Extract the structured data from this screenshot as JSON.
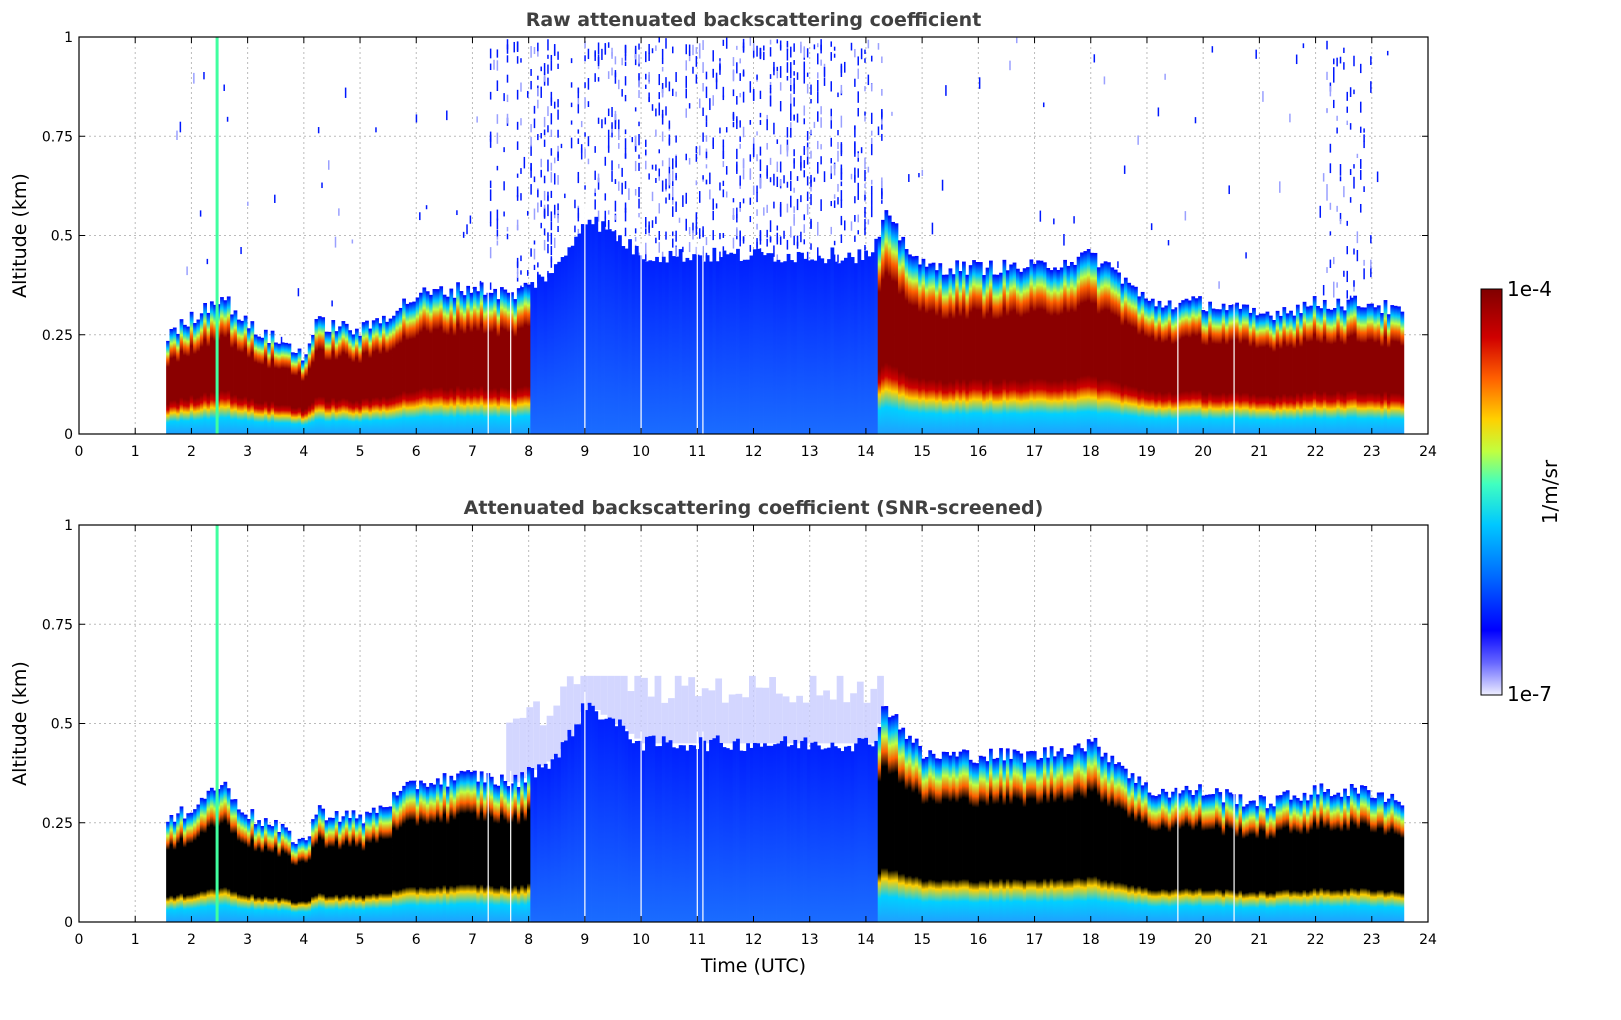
{
  "chart_data": [
    {
      "type": "heatmap",
      "title": "Raw attenuated backscattering coefficient",
      "xlabel": "",
      "ylabel": "Altitude (km)",
      "xlim": [
        0,
        24
      ],
      "ylim": [
        0,
        1
      ],
      "xticks": [
        "0",
        "1",
        "2",
        "3",
        "4",
        "5",
        "6",
        "7",
        "8",
        "9",
        "10",
        "11",
        "12",
        "13",
        "14",
        "15",
        "16",
        "17",
        "18",
        "19",
        "20",
        "21",
        "22",
        "23",
        "24"
      ],
      "yticks": [
        "0",
        "0.25",
        "0.5",
        "0.75",
        "1"
      ],
      "grid": true,
      "data_time_range_utc": [
        1.55,
        23.55
      ],
      "boundary_layer_top_km": {
        "time": [
          1.6,
          2.5,
          3.0,
          4.0,
          4.2,
          5.0,
          6.0,
          7.0,
          7.7,
          8.5,
          9.0,
          9.5,
          10.0,
          12.0,
          14.1,
          14.3,
          15.0,
          16.0,
          17.0,
          18.0,
          18.5,
          19.0,
          20.0,
          21.0,
          22.0,
          23.0,
          23.55
        ],
        "value": [
          0.25,
          0.35,
          0.27,
          0.2,
          0.28,
          0.26,
          0.35,
          0.37,
          0.35,
          0.42,
          0.55,
          0.5,
          0.45,
          0.45,
          0.45,
          0.55,
          0.42,
          0.42,
          0.42,
          0.45,
          0.4,
          0.33,
          0.33,
          0.3,
          0.33,
          0.33,
          0.3
        ]
      }
    },
    {
      "type": "heatmap",
      "title": "Attenuated backscattering coefficient (SNR-screened)",
      "xlabel": "Time (UTC)",
      "ylabel": "Altitude (km)",
      "xlim": [
        0,
        24
      ],
      "ylim": [
        0,
        1
      ],
      "xticks": [
        "0",
        "1",
        "2",
        "3",
        "4",
        "5",
        "6",
        "7",
        "8",
        "9",
        "10",
        "11",
        "12",
        "13",
        "14",
        "15",
        "16",
        "17",
        "18",
        "19",
        "20",
        "21",
        "22",
        "23",
        "24"
      ],
      "yticks": [
        "0",
        "0.25",
        "0.5",
        "0.75",
        "1"
      ],
      "grid": true,
      "data_time_range_utc": [
        1.55,
        23.55
      ]
    }
  ],
  "colorbar": {
    "label": "1/m/sr",
    "max_label": "1e-4",
    "min_label": "1e-7",
    "scale": "log",
    "colors": [
      "#eeeeff",
      "#0000ff",
      "#0070ff",
      "#00c8ff",
      "#40ffc0",
      "#c0ff40",
      "#ffd000",
      "#ff6000",
      "#d00000",
      "#800000"
    ]
  }
}
